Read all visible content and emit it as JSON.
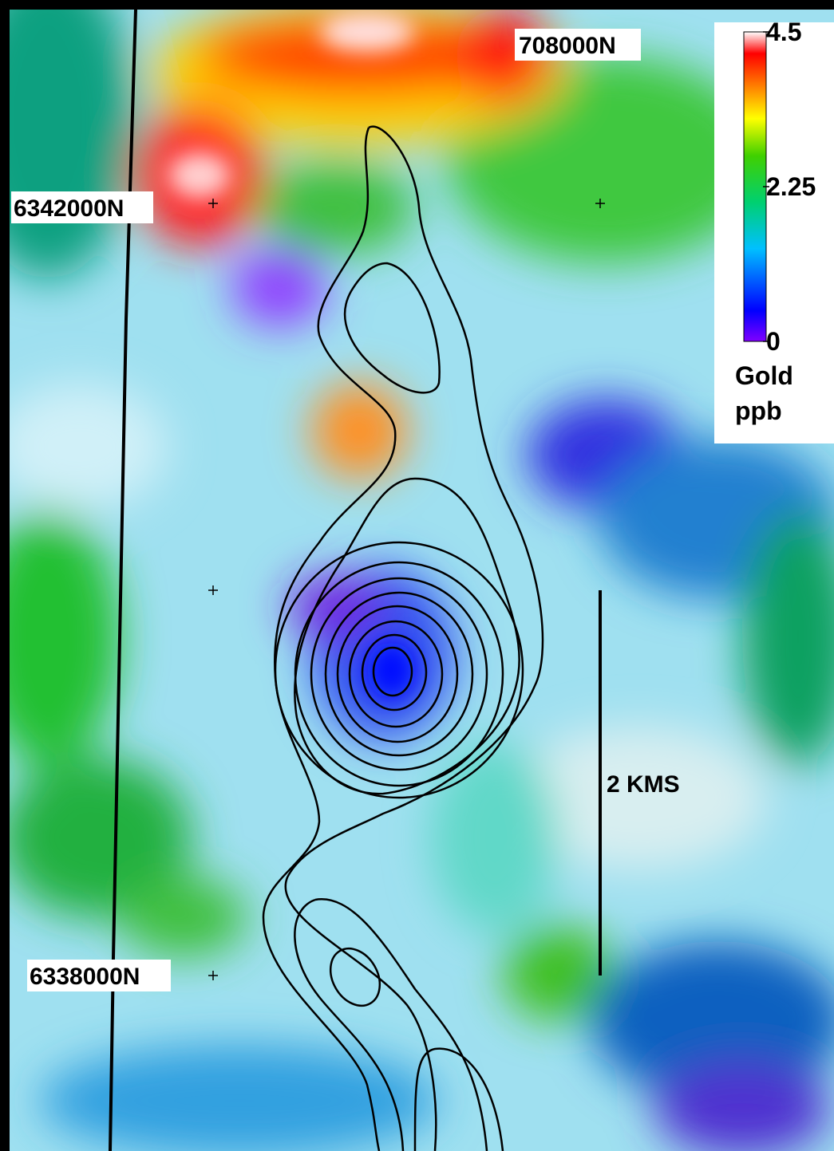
{
  "labels": {
    "easting": "708000N",
    "northing_top": "6342000N",
    "northing_bottom": "6338000N"
  },
  "scale_bar": "2 KMS",
  "legend": {
    "ticks": [
      4.5,
      2.25,
      0
    ],
    "title": "Gold",
    "unit": "ppb"
  }
}
